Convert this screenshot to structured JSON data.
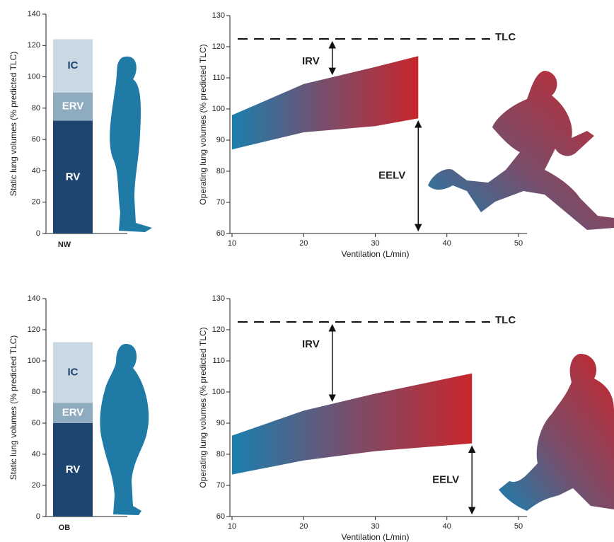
{
  "chart_data": [
    {
      "type": "stacked_bar",
      "ylabel": "Static lung volumes (% predicted TLC)",
      "categories": [
        "NW"
      ],
      "series": [
        {
          "name": "RV",
          "color": "#1e4470",
          "values": [
            72
          ]
        },
        {
          "name": "ERV",
          "color": "#8eabbf",
          "values": [
            18
          ]
        },
        {
          "name": "IC",
          "color": "#c9d8e3",
          "values": [
            34
          ]
        }
      ],
      "ylim": [
        0,
        140
      ],
      "yticks": [
        0,
        20,
        40,
        60,
        80,
        100,
        120,
        140
      ]
    },
    {
      "type": "band",
      "xlabel": "Ventilation (L/min)",
      "ylabel": "Operating lung volumes (% predicted TLC)",
      "x": [
        10,
        20,
        30,
        36
      ],
      "upper": [
        98,
        108,
        113.5,
        117
      ],
      "lower": [
        87,
        92.5,
        94.5,
        97
      ],
      "reference_lines": [
        {
          "label": "TLC",
          "value": 122.5
        }
      ],
      "annotations": [
        {
          "text": "IRV",
          "x": 24
        },
        {
          "text": "EELV",
          "x": 36
        }
      ],
      "xlim": [
        10,
        50
      ],
      "xticks": [
        10,
        20,
        30,
        40,
        50
      ],
      "ylim": [
        60,
        130
      ],
      "yticks": [
        60,
        70,
        80,
        90,
        100,
        110,
        120,
        130
      ]
    },
    {
      "type": "stacked_bar",
      "ylabel": "Static lung volumes (% predicted TLC)",
      "categories": [
        "OB"
      ],
      "series": [
        {
          "name": "RV",
          "color": "#1e4470",
          "values": [
            60
          ]
        },
        {
          "name": "ERV",
          "color": "#8eabbf",
          "values": [
            13
          ]
        },
        {
          "name": "IC",
          "color": "#c9d8e3",
          "values": [
            39
          ]
        }
      ],
      "ylim": [
        0,
        140
      ],
      "yticks": [
        0,
        20,
        40,
        60,
        80,
        100,
        120,
        140
      ]
    },
    {
      "type": "band",
      "xlabel": "Ventilation (L/min)",
      "ylabel": "Operating lung volumes (% predicted TLC)",
      "x": [
        10,
        20,
        30,
        43.5
      ],
      "upper": [
        86,
        94,
        99.5,
        106
      ],
      "lower": [
        73.5,
        78,
        81,
        83.5
      ],
      "reference_lines": [
        {
          "label": "TLC",
          "value": 122.5
        }
      ],
      "annotations": [
        {
          "text": "IRV",
          "x": 24
        },
        {
          "text": "EELV",
          "x": 43.5
        }
      ],
      "xlim": [
        10,
        50
      ],
      "xticks": [
        10,
        20,
        30,
        40,
        50
      ],
      "ylim": [
        60,
        130
      ],
      "yticks": [
        60,
        70,
        80,
        90,
        100,
        110,
        120,
        130
      ]
    }
  ]
}
